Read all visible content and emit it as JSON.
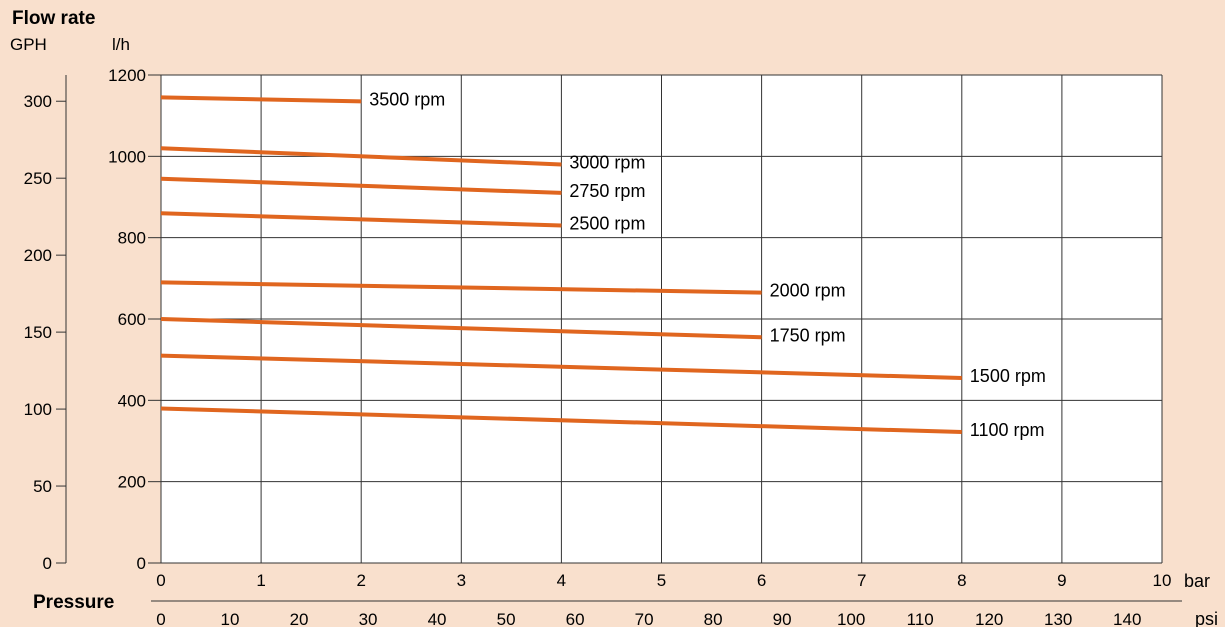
{
  "chart_data": {
    "type": "line",
    "title": "Flow rate",
    "left_axis": {
      "unit": "GPH",
      "ticks": [
        0,
        50,
        100,
        150,
        200,
        250,
        300
      ],
      "labels": [
        "0",
        "50",
        "100",
        "150",
        "200",
        "250",
        "300"
      ]
    },
    "y_axis": {
      "unit": "l/h",
      "ylim": [
        0,
        1200
      ],
      "ticks": [
        0,
        200,
        400,
        600,
        800,
        1000,
        1200
      ],
      "labels": [
        "0",
        "200",
        "400",
        "600",
        "800",
        "1000",
        "1200"
      ]
    },
    "x_axis": {
      "label": "Pressure",
      "unit": "bar",
      "xlim": [
        0,
        10
      ],
      "ticks": [
        0,
        1,
        2,
        3,
        4,
        5,
        6,
        7,
        8,
        9,
        10
      ],
      "labels": [
        "0",
        "1",
        "2",
        "3",
        "4",
        "5",
        "6",
        "7",
        "8",
        "9",
        "10"
      ]
    },
    "x2_axis": {
      "unit": "psi",
      "ticks": [
        0,
        10,
        20,
        30,
        40,
        50,
        60,
        70,
        80,
        90,
        100,
        110,
        120,
        130,
        140
      ],
      "labels": [
        "0",
        "10",
        "20",
        "30",
        "40",
        "50",
        "60",
        "70",
        "80",
        "90",
        "100",
        "110",
        "120",
        "130",
        "140"
      ]
    },
    "grid": true,
    "colors": {
      "line": "#e0661f",
      "grid": "#333333",
      "axis": "#333333",
      "background": "#f9e0cd",
      "plot": "#ffffff"
    },
    "series": [
      {
        "name": "3500 rpm",
        "x": [
          0,
          2
        ],
        "y": [
          1145,
          1135
        ]
      },
      {
        "name": "3000 rpm",
        "x": [
          0,
          4
        ],
        "y": [
          1020,
          980
        ]
      },
      {
        "name": "2750 rpm",
        "x": [
          0,
          4
        ],
        "y": [
          945,
          910
        ]
      },
      {
        "name": "2500 rpm",
        "x": [
          0,
          4
        ],
        "y": [
          860,
          830
        ]
      },
      {
        "name": "2000 rpm",
        "x": [
          0,
          6
        ],
        "y": [
          690,
          665
        ]
      },
      {
        "name": "1750 rpm",
        "x": [
          0,
          6
        ],
        "y": [
          600,
          555
        ]
      },
      {
        "name": "1500 rpm",
        "x": [
          0,
          8
        ],
        "y": [
          510,
          455
        ]
      },
      {
        "name": "1100 rpm",
        "x": [
          0,
          8
        ],
        "y": [
          380,
          322
        ]
      }
    ]
  }
}
